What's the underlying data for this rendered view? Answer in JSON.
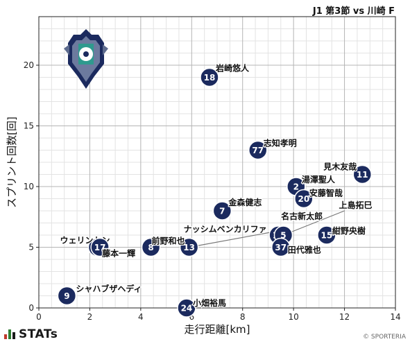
{
  "match_title": "J1 第3節 vs 川崎 F",
  "brand": "STATs",
  "copyright": "© SPORTERIA",
  "colors": {
    "marker": "#1b2a5e",
    "grid": "#c8c8c8",
    "stats_bars": [
      "#c0392b",
      "#2e7d32",
      "#1a1a1a"
    ]
  },
  "crest_icon": "avispa-fukuoka-crest",
  "chart_data": {
    "type": "scatter",
    "title": "J1 第3節 vs 川崎 F",
    "xlabel": "走行距離[km]",
    "ylabel": "スプリント回数[回]",
    "xlim": [
      0,
      14
    ],
    "ylim": [
      0,
      24
    ],
    "xticks": [
      0,
      2,
      4,
      6,
      8,
      10,
      12,
      14
    ],
    "yticks": [
      0,
      5,
      10,
      15,
      20
    ],
    "grid": true,
    "points": [
      {
        "number": "18",
        "name": "岩崎悠人",
        "x": 6.7,
        "y": 19
      },
      {
        "number": "77",
        "name": "志知孝明",
        "x": 8.6,
        "y": 13
      },
      {
        "number": "11",
        "name": "見木友哉",
        "x": 12.7,
        "y": 11
      },
      {
        "number": "2",
        "name": "湯澤聖人",
        "x": 10.1,
        "y": 10
      },
      {
        "number": "20",
        "name": "安藤智哉",
        "x": 10.4,
        "y": 9
      },
      {
        "number": "7",
        "name": "金森健志",
        "x": 7.2,
        "y": 8
      },
      {
        "number": "14",
        "name": "名古新太郎",
        "x": 9.4,
        "y": 6
      },
      {
        "number": "5",
        "name": "上島拓巳",
        "x": 9.6,
        "y": 6
      },
      {
        "number": "15",
        "name": "紺野央樹",
        "x": 11.3,
        "y": 6
      },
      {
        "number": "37",
        "name": "田代雅也",
        "x": 9.5,
        "y": 5
      },
      {
        "number": "13",
        "name": "ナッシムベンカリファ",
        "x": 5.9,
        "y": 5
      },
      {
        "number": "8",
        "name": "前野和也",
        "x": 4.4,
        "y": 5
      },
      {
        "number": "22",
        "name": "ウェリントン",
        "x": 2.3,
        "y": 5
      },
      {
        "number": "17",
        "name": "藤本一輝",
        "x": 2.4,
        "y": 5
      },
      {
        "number": "9",
        "name": "シャハブザヘディ",
        "x": 1.1,
        "y": 1
      },
      {
        "number": "24",
        "name": "小畑裕馬",
        "x": 5.8,
        "y": 0
      }
    ]
  }
}
